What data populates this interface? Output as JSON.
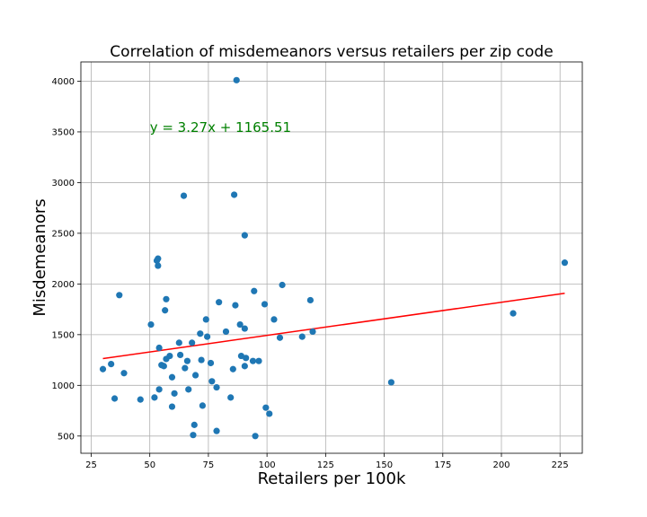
{
  "chart_data": {
    "type": "scatter",
    "title": "Correlation of misdemeanors versus retailers per zip code",
    "xlabel": "Retailers per 100k",
    "ylabel": "Misdemeanors",
    "xlim": [
      20.6,
      234.5
    ],
    "ylim": [
      330,
      4190
    ],
    "xticks": [
      25,
      50,
      75,
      100,
      125,
      150,
      175,
      200,
      225
    ],
    "yticks": [
      500,
      1000,
      1500,
      2000,
      2500,
      3000,
      3500,
      4000
    ],
    "grid": true,
    "point_color": "#1f77b4",
    "line_color": "#ff0000",
    "annotation_color": "#008000",
    "annotation": {
      "text": "y = 3.27x + 1165.51",
      "x": 50,
      "y": 3500
    },
    "regression": {
      "slope": 3.27,
      "intercept": 1165.51,
      "x_range": [
        30,
        227
      ]
    },
    "points": [
      [
        30,
        1160
      ],
      [
        33.5,
        1210
      ],
      [
        35,
        870
      ],
      [
        37,
        1890
      ],
      [
        39,
        1120
      ],
      [
        46,
        860
      ],
      [
        50.5,
        1600
      ],
      [
        52,
        880
      ],
      [
        53,
        2230
      ],
      [
        53.5,
        2250
      ],
      [
        53.5,
        2180
      ],
      [
        54,
        1370
      ],
      [
        54,
        960
      ],
      [
        55,
        1200
      ],
      [
        56,
        1190
      ],
      [
        56.5,
        1740
      ],
      [
        57,
        1850
      ],
      [
        57,
        1260
      ],
      [
        58.5,
        1290
      ],
      [
        59.5,
        1080
      ],
      [
        59.5,
        790
      ],
      [
        60.5,
        920
      ],
      [
        62.5,
        1420
      ],
      [
        63,
        1300
      ],
      [
        64.5,
        2870
      ],
      [
        65,
        1170
      ],
      [
        66,
        1240
      ],
      [
        66.5,
        960
      ],
      [
        68,
        1420
      ],
      [
        68.5,
        510
      ],
      [
        69,
        610
      ],
      [
        69.5,
        1100
      ],
      [
        71.5,
        1510
      ],
      [
        72,
        1250
      ],
      [
        72.5,
        800
      ],
      [
        74,
        1650
      ],
      [
        74.5,
        1480
      ],
      [
        76,
        1220
      ],
      [
        76.5,
        1040
      ],
      [
        78.5,
        980
      ],
      [
        78.5,
        550
      ],
      [
        79.5,
        1820
      ],
      [
        82.5,
        1530
      ],
      [
        84.5,
        880
      ],
      [
        85.5,
        1160
      ],
      [
        86,
        2880
      ],
      [
        86.5,
        1790
      ],
      [
        87,
        4010
      ],
      [
        88.5,
        1600
      ],
      [
        89,
        1290
      ],
      [
        90.5,
        1560
      ],
      [
        90.5,
        1190
      ],
      [
        90.5,
        2480
      ],
      [
        91,
        1270
      ],
      [
        94,
        1240
      ],
      [
        94.5,
        1930
      ],
      [
        95,
        500
      ],
      [
        96.5,
        1240
      ],
      [
        99,
        1800
      ],
      [
        99.5,
        780
      ],
      [
        101,
        720
      ],
      [
        103,
        1650
      ],
      [
        105.5,
        1470
      ],
      [
        106.5,
        1990
      ],
      [
        115,
        1480
      ],
      [
        118.5,
        1840
      ],
      [
        119.5,
        1530
      ],
      [
        153,
        1030
      ],
      [
        205,
        1710
      ],
      [
        227,
        2210
      ]
    ]
  }
}
